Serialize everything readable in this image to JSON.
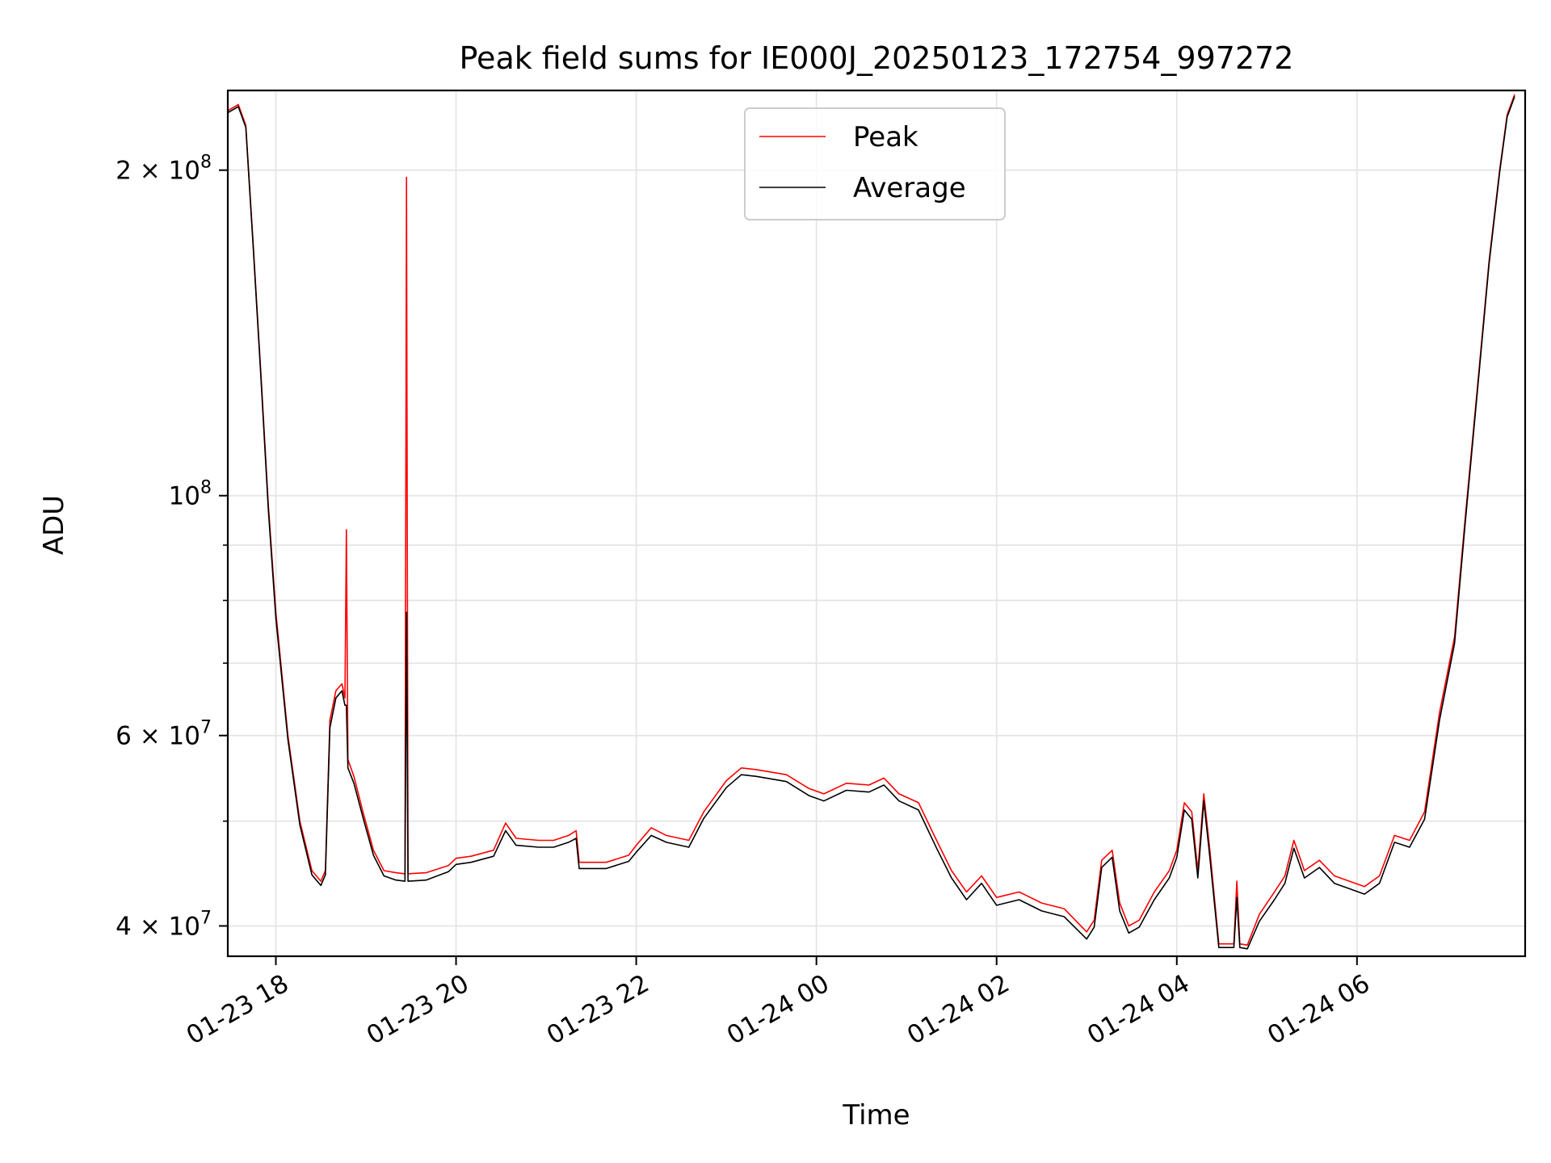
{
  "chart_data": {
    "type": "line",
    "title": "Peak field sums for IE000J_20250123_172754_997272",
    "xlabel": "Time",
    "ylabel": "ADU",
    "y_scale": "log",
    "ylim": [
      37500000,
      237000000
    ],
    "x_range": [
      "2025-01-23 17:28",
      "2025-01-24 07:52"
    ],
    "grid": true,
    "legend_position": "top-center",
    "x_ticks": [
      {
        "t": "2025-01-23 18:00",
        "label": "01-23 18"
      },
      {
        "t": "2025-01-23 20:00",
        "label": "01-23 20"
      },
      {
        "t": "2025-01-23 22:00",
        "label": "01-23 22"
      },
      {
        "t": "2025-01-24 00:00",
        "label": "01-24 00"
      },
      {
        "t": "2025-01-24 02:00",
        "label": "01-24 02"
      },
      {
        "t": "2025-01-24 04:00",
        "label": "01-24 04"
      },
      {
        "t": "2025-01-24 06:00",
        "label": "01-24 06"
      }
    ],
    "y_ticks": [
      {
        "v": 40000000,
        "mant": "4",
        "exp": "7"
      },
      {
        "v": 60000000,
        "mant": "6",
        "exp": "7"
      },
      {
        "v": 100000000,
        "mant": "",
        "exp": "8"
      },
      {
        "v": 200000000,
        "mant": "2",
        "exp": "8"
      }
    ],
    "y_minor_ticks": [
      50000000,
      70000000,
      80000000,
      90000000
    ],
    "series": [
      {
        "name": "Peak",
        "color": "#ff0000",
        "points": [
          [
            "2025-01-23 17:28",
            227000000
          ],
          [
            "2025-01-23 17:35",
            230000000
          ],
          [
            "2025-01-23 17:40",
            220000000
          ],
          [
            "2025-01-23 17:45",
            170000000
          ],
          [
            "2025-01-23 17:50",
            130000000
          ],
          [
            "2025-01-23 17:55",
            98000000
          ],
          [
            "2025-01-23 18:00",
            78000000
          ],
          [
            "2025-01-23 18:08",
            60000000
          ],
          [
            "2025-01-23 18:16",
            50000000
          ],
          [
            "2025-01-23 18:24",
            45000000
          ],
          [
            "2025-01-23 18:30",
            44000000
          ],
          [
            "2025-01-23 18:33",
            45000000
          ],
          [
            "2025-01-23 18:36",
            62000000
          ],
          [
            "2025-01-23 18:40",
            66000000
          ],
          [
            "2025-01-23 18:44",
            67000000
          ],
          [
            "2025-01-23 18:46",
            65000000
          ],
          [
            "2025-01-23 18:47",
            93000000
          ],
          [
            "2025-01-23 18:48",
            57000000
          ],
          [
            "2025-01-23 18:52",
            55000000
          ],
          [
            "2025-01-23 18:58",
            51000000
          ],
          [
            "2025-01-23 19:05",
            47000000
          ],
          [
            "2025-01-23 19:12",
            45000000
          ],
          [
            "2025-01-23 19:20",
            44800000
          ],
          [
            "2025-01-23 19:26",
            44700000
          ],
          [
            "2025-01-23 19:27",
            197000000
          ],
          [
            "2025-01-23 19:28",
            44700000
          ],
          [
            "2025-01-23 19:40",
            44800000
          ],
          [
            "2025-01-23 19:55",
            45500000
          ],
          [
            "2025-01-23 20:00",
            46200000
          ],
          [
            "2025-01-23 20:10",
            46400000
          ],
          [
            "2025-01-23 20:25",
            47000000
          ],
          [
            "2025-01-23 20:33",
            49800000
          ],
          [
            "2025-01-23 20:40",
            48200000
          ],
          [
            "2025-01-23 20:55",
            48000000
          ],
          [
            "2025-01-23 21:05",
            48000000
          ],
          [
            "2025-01-23 21:15",
            48500000
          ],
          [
            "2025-01-23 21:20",
            49000000
          ],
          [
            "2025-01-23 21:22",
            45800000
          ],
          [
            "2025-01-23 21:40",
            45800000
          ],
          [
            "2025-01-23 21:55",
            46500000
          ],
          [
            "2025-01-23 22:00",
            47500000
          ],
          [
            "2025-01-23 22:10",
            49300000
          ],
          [
            "2025-01-23 22:20",
            48500000
          ],
          [
            "2025-01-23 22:35",
            48000000
          ],
          [
            "2025-01-23 22:45",
            51000000
          ],
          [
            "2025-01-23 23:00",
            54500000
          ],
          [
            "2025-01-23 23:10",
            56000000
          ],
          [
            "2025-01-23 23:20",
            55800000
          ],
          [
            "2025-01-23 23:40",
            55200000
          ],
          [
            "2025-01-23 23:55",
            53600000
          ],
          [
            "2025-01-24 00:05",
            53000000
          ],
          [
            "2025-01-24 00:20",
            54200000
          ],
          [
            "2025-01-24 00:35",
            54000000
          ],
          [
            "2025-01-24 00:45",
            54800000
          ],
          [
            "2025-01-24 00:55",
            53000000
          ],
          [
            "2025-01-24 01:08",
            52000000
          ],
          [
            "2025-01-24 01:20",
            48000000
          ],
          [
            "2025-01-24 01:30",
            45000000
          ],
          [
            "2025-01-24 01:40",
            43000000
          ],
          [
            "2025-01-24 01:50",
            44500000
          ],
          [
            "2025-01-24 02:00",
            42500000
          ],
          [
            "2025-01-24 02:15",
            43000000
          ],
          [
            "2025-01-24 02:30",
            42000000
          ],
          [
            "2025-01-24 02:45",
            41500000
          ],
          [
            "2025-01-24 03:00",
            39500000
          ],
          [
            "2025-01-24 03:05",
            40500000
          ],
          [
            "2025-01-24 03:10",
            46000000
          ],
          [
            "2025-01-24 03:17",
            47000000
          ],
          [
            "2025-01-24 03:22",
            42000000
          ],
          [
            "2025-01-24 03:28",
            40000000
          ],
          [
            "2025-01-24 03:35",
            40500000
          ],
          [
            "2025-01-24 03:45",
            43000000
          ],
          [
            "2025-01-24 03:55",
            45000000
          ],
          [
            "2025-01-24 04:00",
            47000000
          ],
          [
            "2025-01-24 04:05",
            52000000
          ],
          [
            "2025-01-24 04:10",
            51000000
          ],
          [
            "2025-01-24 04:14",
            45000000
          ],
          [
            "2025-01-24 04:18",
            53000000
          ],
          [
            "2025-01-24 04:22",
            47000000
          ],
          [
            "2025-01-24 04:28",
            38500000
          ],
          [
            "2025-01-24 04:38",
            38500000
          ],
          [
            "2025-01-24 04:40",
            44000000
          ],
          [
            "2025-01-24 04:42",
            38500000
          ],
          [
            "2025-01-24 04:47",
            38400000
          ],
          [
            "2025-01-24 04:55",
            41000000
          ],
          [
            "2025-01-24 05:05",
            43000000
          ],
          [
            "2025-01-24 05:12",
            44500000
          ],
          [
            "2025-01-24 05:18",
            48000000
          ],
          [
            "2025-01-24 05:25",
            45000000
          ],
          [
            "2025-01-24 05:35",
            46000000
          ],
          [
            "2025-01-24 05:45",
            44500000
          ],
          [
            "2025-01-24 05:55",
            44000000
          ],
          [
            "2025-01-24 06:05",
            43500000
          ],
          [
            "2025-01-24 06:15",
            44500000
          ],
          [
            "2025-01-24 06:25",
            48500000
          ],
          [
            "2025-01-24 06:35",
            48000000
          ],
          [
            "2025-01-24 06:45",
            51000000
          ],
          [
            "2025-01-24 06:55",
            63000000
          ],
          [
            "2025-01-24 07:05",
            74000000
          ],
          [
            "2025-01-24 07:12",
            95000000
          ],
          [
            "2025-01-24 07:20",
            125000000
          ],
          [
            "2025-01-24 07:28",
            165000000
          ],
          [
            "2025-01-24 07:35",
            200000000
          ],
          [
            "2025-01-24 07:40",
            225000000
          ],
          [
            "2025-01-24 07:45",
            235000000
          ]
        ]
      },
      {
        "name": "Average",
        "color": "#000000",
        "points": [
          [
            "2025-01-23 17:28",
            226000000
          ],
          [
            "2025-01-23 17:35",
            229000000
          ],
          [
            "2025-01-23 17:40",
            219000000
          ],
          [
            "2025-01-23 17:45",
            169000000
          ],
          [
            "2025-01-23 17:50",
            129000000
          ],
          [
            "2025-01-23 17:55",
            97000000
          ],
          [
            "2025-01-23 18:00",
            77000000
          ],
          [
            "2025-01-23 18:08",
            59500000
          ],
          [
            "2025-01-23 18:16",
            49600000
          ],
          [
            "2025-01-23 18:24",
            44600000
          ],
          [
            "2025-01-23 18:30",
            43600000
          ],
          [
            "2025-01-23 18:33",
            44600000
          ],
          [
            "2025-01-23 18:36",
            61000000
          ],
          [
            "2025-01-23 18:40",
            65000000
          ],
          [
            "2025-01-23 18:44",
            66000000
          ],
          [
            "2025-01-23 18:46",
            64000000
          ],
          [
            "2025-01-23 18:47",
            64000000
          ],
          [
            "2025-01-23 18:48",
            56000000
          ],
          [
            "2025-01-23 18:52",
            54200000
          ],
          [
            "2025-01-23 18:58",
            50400000
          ],
          [
            "2025-01-23 19:05",
            46500000
          ],
          [
            "2025-01-23 19:12",
            44500000
          ],
          [
            "2025-01-23 19:20",
            44100000
          ],
          [
            "2025-01-23 19:26",
            44000000
          ],
          [
            "2025-01-23 19:27",
            78000000
          ],
          [
            "2025-01-23 19:28",
            44000000
          ],
          [
            "2025-01-23 19:40",
            44100000
          ],
          [
            "2025-01-23 19:55",
            44900000
          ],
          [
            "2025-01-23 20:00",
            45600000
          ],
          [
            "2025-01-23 20:10",
            45800000
          ],
          [
            "2025-01-23 20:25",
            46400000
          ],
          [
            "2025-01-23 20:33",
            49000000
          ],
          [
            "2025-01-23 20:40",
            47500000
          ],
          [
            "2025-01-23 20:55",
            47300000
          ],
          [
            "2025-01-23 21:05",
            47300000
          ],
          [
            "2025-01-23 21:15",
            47800000
          ],
          [
            "2025-01-23 21:20",
            48200000
          ],
          [
            "2025-01-23 21:22",
            45200000
          ],
          [
            "2025-01-23 21:40",
            45200000
          ],
          [
            "2025-01-23 21:55",
            45900000
          ],
          [
            "2025-01-23 22:00",
            46800000
          ],
          [
            "2025-01-23 22:10",
            48500000
          ],
          [
            "2025-01-23 22:20",
            47800000
          ],
          [
            "2025-01-23 22:35",
            47300000
          ],
          [
            "2025-01-23 22:45",
            50300000
          ],
          [
            "2025-01-23 23:00",
            53700000
          ],
          [
            "2025-01-23 23:10",
            55200000
          ],
          [
            "2025-01-23 23:20",
            55000000
          ],
          [
            "2025-01-23 23:40",
            54400000
          ],
          [
            "2025-01-23 23:55",
            52800000
          ],
          [
            "2025-01-24 00:05",
            52200000
          ],
          [
            "2025-01-24 00:20",
            53400000
          ],
          [
            "2025-01-24 00:35",
            53200000
          ],
          [
            "2025-01-24 00:45",
            54000000
          ],
          [
            "2025-01-24 00:55",
            52200000
          ],
          [
            "2025-01-24 01:08",
            51200000
          ],
          [
            "2025-01-24 01:20",
            47200000
          ],
          [
            "2025-01-24 01:30",
            44300000
          ],
          [
            "2025-01-24 01:40",
            42300000
          ],
          [
            "2025-01-24 01:50",
            43800000
          ],
          [
            "2025-01-24 02:00",
            41800000
          ],
          [
            "2025-01-24 02:15",
            42300000
          ],
          [
            "2025-01-24 02:30",
            41300000
          ],
          [
            "2025-01-24 02:45",
            40800000
          ],
          [
            "2025-01-24 03:00",
            38900000
          ],
          [
            "2025-01-24 03:05",
            39900000
          ],
          [
            "2025-01-24 03:10",
            45300000
          ],
          [
            "2025-01-24 03:17",
            46300000
          ],
          [
            "2025-01-24 03:22",
            41300000
          ],
          [
            "2025-01-24 03:28",
            39400000
          ],
          [
            "2025-01-24 03:35",
            39900000
          ],
          [
            "2025-01-24 03:45",
            42300000
          ],
          [
            "2025-01-24 03:55",
            44300000
          ],
          [
            "2025-01-24 04:00",
            46300000
          ],
          [
            "2025-01-24 04:05",
            51200000
          ],
          [
            "2025-01-24 04:10",
            50200000
          ],
          [
            "2025-01-24 04:14",
            44300000
          ],
          [
            "2025-01-24 04:18",
            52200000
          ],
          [
            "2025-01-24 04:22",
            46300000
          ],
          [
            "2025-01-24 04:28",
            38200000
          ],
          [
            "2025-01-24 04:38",
            38200000
          ],
          [
            "2025-01-24 04:40",
            42500000
          ],
          [
            "2025-01-24 04:42",
            38200000
          ],
          [
            "2025-01-24 04:47",
            38100000
          ],
          [
            "2025-01-24 04:55",
            40400000
          ],
          [
            "2025-01-24 05:05",
            42300000
          ],
          [
            "2025-01-24 05:12",
            43800000
          ],
          [
            "2025-01-24 05:18",
            47200000
          ],
          [
            "2025-01-24 05:25",
            44300000
          ],
          [
            "2025-01-24 05:35",
            45300000
          ],
          [
            "2025-01-24 05:45",
            43800000
          ],
          [
            "2025-01-24 05:55",
            43300000
          ],
          [
            "2025-01-24 06:05",
            42800000
          ],
          [
            "2025-01-24 06:15",
            43800000
          ],
          [
            "2025-01-24 06:25",
            47800000
          ],
          [
            "2025-01-24 06:35",
            47300000
          ],
          [
            "2025-01-24 06:45",
            50200000
          ],
          [
            "2025-01-24 06:55",
            62000000
          ],
          [
            "2025-01-24 07:05",
            73000000
          ],
          [
            "2025-01-24 07:12",
            94000000
          ],
          [
            "2025-01-24 07:20",
            124000000
          ],
          [
            "2025-01-24 07:28",
            164000000
          ],
          [
            "2025-01-24 07:35",
            199000000
          ],
          [
            "2025-01-24 07:40",
            224000000
          ],
          [
            "2025-01-24 07:45",
            234000000
          ]
        ]
      }
    ]
  }
}
